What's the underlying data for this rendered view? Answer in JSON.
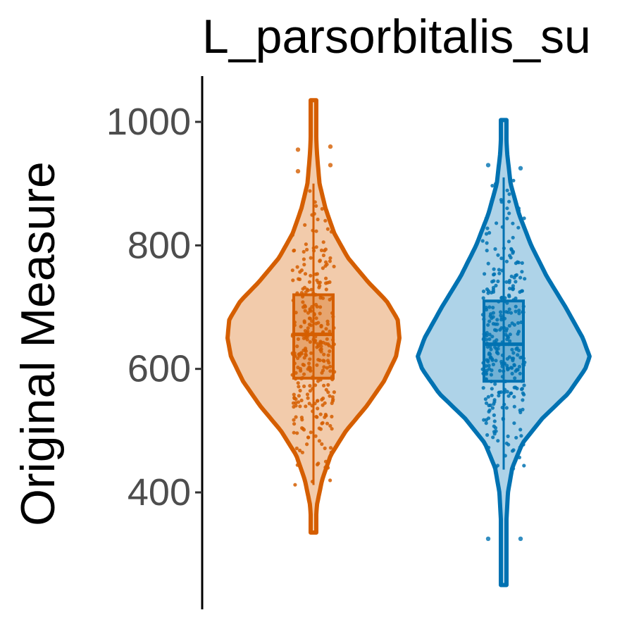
{
  "chart_data": {
    "type": "violin",
    "title": "L_parsorbitalis_su",
    "ylabel": "Original Measure",
    "xlabel": "",
    "ylim": [
      240,
      1070
    ],
    "yticks": [
      400,
      600,
      800,
      1000
    ],
    "ytick_labels": [
      "400",
      "600",
      "800",
      "1000"
    ],
    "grid": false,
    "legend": "none",
    "series": [
      {
        "color": "#D55E00",
        "fill": "#F2CBAB",
        "violin_min": 335,
        "violin_max": 1035,
        "density": [
          [
            335,
            0.02
          ],
          [
            380,
            0.04
          ],
          [
            420,
            0.1
          ],
          [
            460,
            0.2
          ],
          [
            500,
            0.38
          ],
          [
            540,
            0.62
          ],
          [
            580,
            0.82
          ],
          [
            620,
            0.96
          ],
          [
            650,
            1.0
          ],
          [
            680,
            0.98
          ],
          [
            710,
            0.85
          ],
          [
            740,
            0.64
          ],
          [
            780,
            0.4
          ],
          [
            820,
            0.24
          ],
          [
            860,
            0.14
          ],
          [
            900,
            0.07
          ],
          [
            950,
            0.04
          ],
          [
            1000,
            0.025
          ],
          [
            1035,
            0.02
          ]
        ],
        "box": {
          "whisker_low": 412,
          "q1": 585,
          "median": 656,
          "q3": 720,
          "whisker_high": 900
        },
        "outliers": [
          920,
          930,
          955,
          960
        ]
      },
      {
        "color": "#0072B2",
        "fill": "#AED3E8",
        "violin_min": 250,
        "violin_max": 1003,
        "density": [
          [
            250,
            0.02
          ],
          [
            300,
            0.03
          ],
          [
            350,
            0.03
          ],
          [
            400,
            0.05
          ],
          [
            440,
            0.1
          ],
          [
            480,
            0.22
          ],
          [
            520,
            0.45
          ],
          [
            560,
            0.75
          ],
          [
            600,
            0.95
          ],
          [
            620,
            1.0
          ],
          [
            650,
            0.92
          ],
          [
            700,
            0.72
          ],
          [
            750,
            0.5
          ],
          [
            800,
            0.32
          ],
          [
            850,
            0.18
          ],
          [
            900,
            0.08
          ],
          [
            950,
            0.04
          ],
          [
            1003,
            0.02
          ]
        ],
        "box": {
          "whisker_low": 437,
          "q1": 580,
          "median": 640,
          "q3": 710,
          "whisker_high": 910
        },
        "outliers": [
          325,
          325,
          930,
          925
        ]
      }
    ]
  }
}
